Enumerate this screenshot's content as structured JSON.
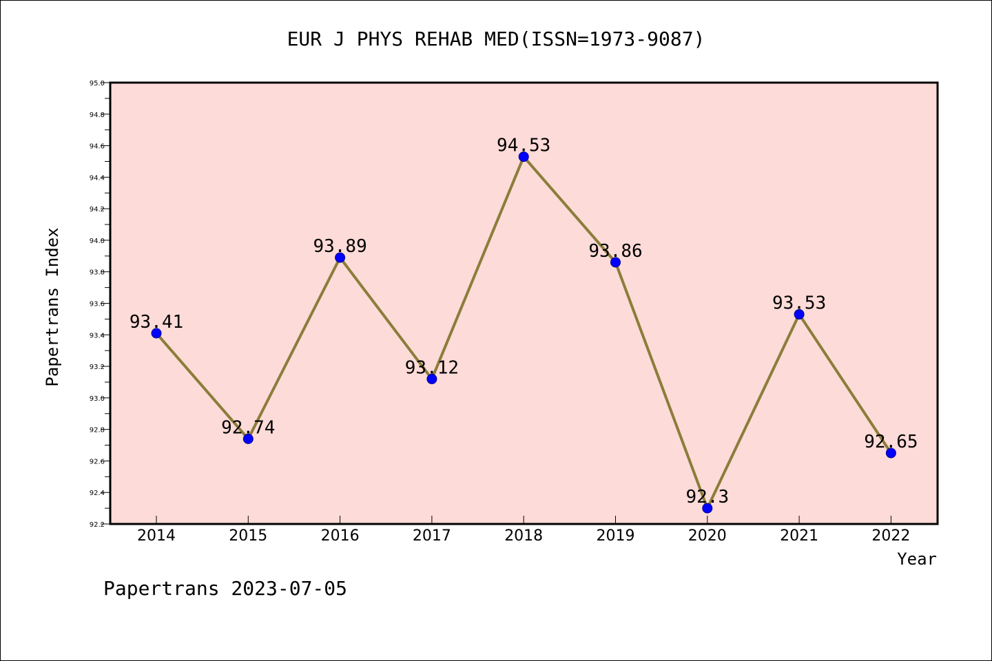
{
  "colors": {
    "plot_background": "#fddbd8",
    "line": "#8b7d3a",
    "marker_fill": "#0000ff",
    "marker_stroke": "#00008b",
    "axis": "#000000"
  },
  "chart_data": {
    "type": "line",
    "title": "EUR J PHYS REHAB MED(ISSN=1973-9087)",
    "xlabel": "Year",
    "ylabel": "Papertrans Index",
    "categories": [
      "2014",
      "2015",
      "2016",
      "2017",
      "2018",
      "2019",
      "2020",
      "2021",
      "2022"
    ],
    "values": [
      93.41,
      92.74,
      93.89,
      93.12,
      94.53,
      93.86,
      92.3,
      93.53,
      92.65
    ],
    "data_labels": [
      "93.41",
      "92.74",
      "93.89",
      "93.12",
      "94.53",
      "93.86",
      "92.3",
      "93.53",
      "92.65"
    ],
    "ylim": [
      92.2,
      95.0
    ],
    "yticks": [
      "92.2",
      "92.4",
      "92.6",
      "92.8",
      "93.0",
      "93.2",
      "93.4",
      "93.6",
      "93.8",
      "94.0",
      "94.2",
      "94.4",
      "94.6",
      "94.8",
      "95.0"
    ],
    "grid": false,
    "legend": "none"
  },
  "footer": {
    "text": "Papertrans 2023-07-05"
  }
}
